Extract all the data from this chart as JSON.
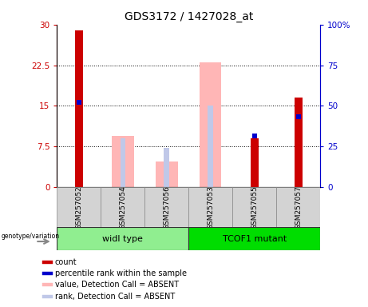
{
  "title": "GDS3172 / 1427028_at",
  "samples": [
    "GSM257052",
    "GSM257054",
    "GSM257056",
    "GSM257053",
    "GSM257055",
    "GSM257057"
  ],
  "groups": [
    {
      "name": "widl type",
      "color": "#90ee90",
      "indices": [
        0,
        1,
        2
      ]
    },
    {
      "name": "TCOF1 mutant",
      "color": "#00dd00",
      "indices": [
        3,
        4,
        5
      ]
    }
  ],
  "red_bars": [
    29.0,
    null,
    null,
    null,
    9.0,
    16.5
  ],
  "blue_squares_left_val": [
    15.6,
    null,
    null,
    null,
    9.5,
    13.0
  ],
  "pink_bars": [
    null,
    9.5,
    4.8,
    23.0,
    null,
    null
  ],
  "lightblue_squares_left_val": [
    null,
    9.0,
    7.3,
    15.0,
    null,
    null
  ],
  "ylim_left": [
    0,
    30
  ],
  "ylim_right": [
    0,
    100
  ],
  "yticks_left": [
    0,
    7.5,
    15,
    22.5,
    30
  ],
  "yticks_right": [
    0,
    25,
    50,
    75,
    100
  ],
  "ytick_labels_left": [
    "0",
    "7.5",
    "15",
    "22.5",
    "30"
  ],
  "ytick_labels_right": [
    "0",
    "25",
    "50",
    "75",
    "100%"
  ],
  "left_axis_color": "#cc0000",
  "right_axis_color": "#0000cc",
  "pink_color": "#ffb6b6",
  "lightblue_color": "#c0c8e8",
  "background_label": "#d3d3d3",
  "legend_items": [
    {
      "color": "#cc0000",
      "label": "count"
    },
    {
      "color": "#0000cc",
      "label": "percentile rank within the sample"
    },
    {
      "color": "#ffb6b6",
      "label": "value, Detection Call = ABSENT"
    },
    {
      "color": "#c0c8e8",
      "label": "rank, Detection Call = ABSENT"
    }
  ]
}
